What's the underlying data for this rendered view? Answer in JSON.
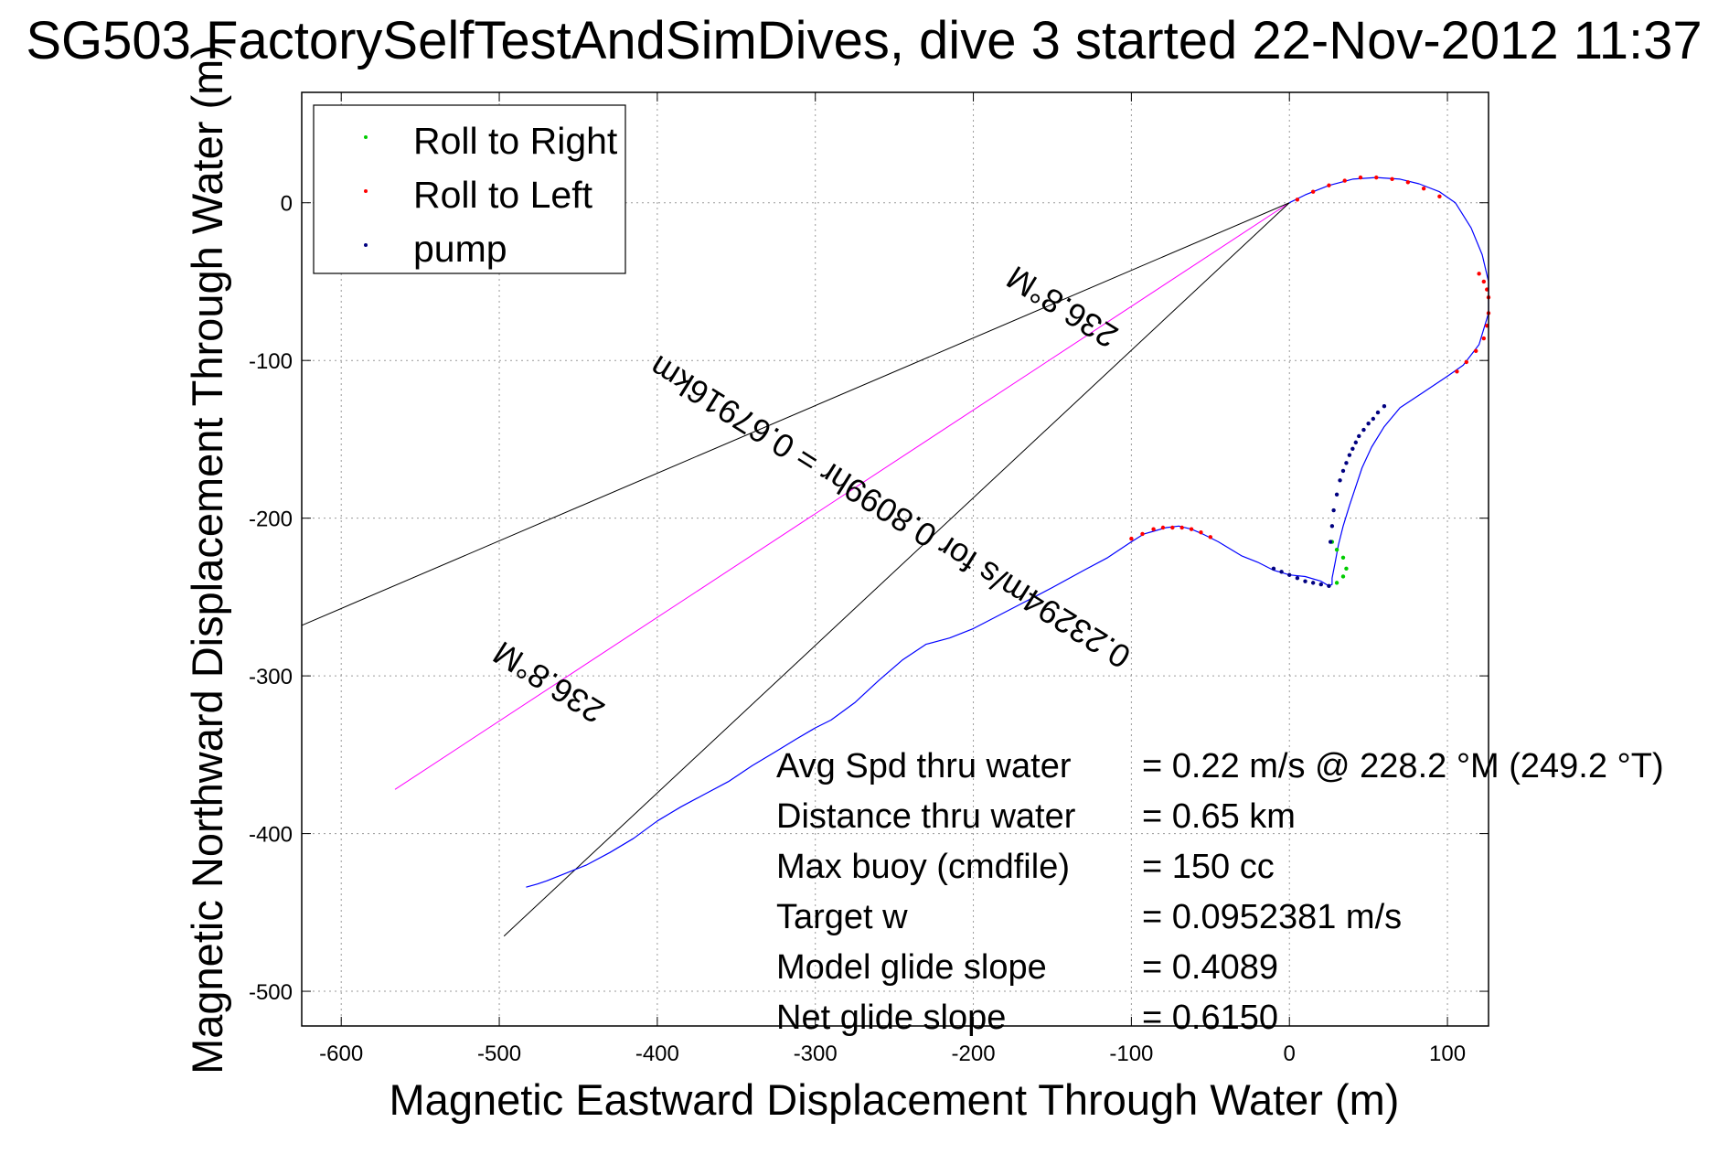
{
  "chart_data": {
    "type": "line",
    "title": "SG503 FactorySelfTestAndSimDives, dive 3 started 22-Nov-2012 11:37",
    "xlabel": "Magnetic Eastward Displacement Through Water (m)",
    "ylabel": "Magnetic Northward Displacement Through Water (m)",
    "xlim": [
      -625,
      126
    ],
    "ylim": [
      -522,
      70
    ],
    "xticks": [
      -600,
      -500,
      -400,
      -300,
      -200,
      -100,
      0,
      100
    ],
    "yticks": [
      0,
      -100,
      -200,
      -300,
      -400,
      -500
    ],
    "grid": true,
    "legend_position": "top-left",
    "legend": [
      {
        "label": "Roll to Right",
        "color": "#00cc00"
      },
      {
        "label": "Roll to Left",
        "color": "#ff0000"
      },
      {
        "label": "pump",
        "color": "#000080"
      }
    ],
    "series": [
      {
        "style": "track",
        "color": "#0000ff",
        "x": [
          0,
          10,
          25,
          40,
          55,
          70,
          82,
          95,
          105,
          115,
          122,
          126,
          126,
          120,
          110,
          100,
          85,
          70,
          60,
          52,
          46,
          42,
          38,
          34,
          31,
          29,
          27,
          27,
          25,
          20,
          10,
          0,
          -10,
          -20,
          -30,
          -45,
          -55,
          -62,
          -70,
          -78,
          -85,
          -92,
          -100,
          -115,
          -130,
          -150,
          -175,
          -200,
          -215,
          -230,
          -245,
          -260,
          -275,
          -290,
          -300,
          -312,
          -325,
          -340,
          -355,
          -370,
          -385,
          -400,
          -415,
          -430,
          -445,
          -460,
          -470,
          -476,
          -483
        ],
        "y": [
          0,
          5,
          11,
          15,
          16,
          15,
          12,
          7,
          0,
          -16,
          -33,
          -50,
          -70,
          -90,
          -103,
          -110,
          -120,
          -130,
          -142,
          -155,
          -168,
          -180,
          -192,
          -205,
          -217,
          -228,
          -238,
          -242,
          -243,
          -240,
          -237,
          -236,
          -233,
          -228,
          -224,
          -215,
          -210,
          -207,
          -205,
          -206,
          -208,
          -210,
          -215,
          -225,
          -233,
          -244,
          -257,
          -270,
          -276,
          -280,
          -290,
          -303,
          -317,
          -328,
          -333,
          -340,
          -348,
          -357,
          -367,
          -375,
          -383,
          -392,
          -403,
          -412,
          -420,
          -426,
          -430,
          -432,
          -434
        ]
      },
      {
        "name": "Roll to Right",
        "style": "markers",
        "color": "#00cc00",
        "x": [
          27,
          30,
          34,
          36,
          34,
          30
        ],
        "y": [
          -215,
          -220,
          -225,
          -232,
          -237,
          -241
        ]
      },
      {
        "name": "Roll to Left",
        "style": "markers",
        "color": "#ff0000",
        "x": [
          5,
          15,
          25,
          35,
          45,
          55,
          65,
          75,
          85,
          95,
          120,
          123,
          125,
          126,
          126,
          125,
          123,
          118,
          112,
          106,
          -100,
          -93,
          -86,
          -80,
          -74,
          -68,
          -62,
          -56,
          -50
        ],
        "y": [
          2,
          7,
          11,
          14,
          16,
          16,
          15,
          13,
          9,
          4,
          -45,
          -50,
          -55,
          -60,
          -70,
          -78,
          -86,
          -94,
          -101,
          -107,
          -213,
          -210,
          -207,
          -206,
          -206,
          -206,
          -207,
          -209,
          -212
        ]
      },
      {
        "name": "pump",
        "style": "markers",
        "color": "#000080",
        "x": [
          -10,
          -5,
          0,
          5,
          10,
          15,
          20,
          25,
          26,
          27,
          28,
          30,
          32,
          34,
          36,
          38,
          40,
          42,
          44,
          47,
          50,
          53,
          56,
          60
        ],
        "y": [
          -232,
          -234,
          -236,
          -238,
          -240,
          -241,
          -242,
          -243,
          -215,
          -205,
          -195,
          -185,
          -176,
          -170,
          -165,
          -160,
          -156,
          -152,
          -148,
          -144,
          -140,
          -137,
          -133,
          -129
        ]
      },
      {
        "name": "Avg Spd thru water",
        "style": "line",
        "color": "#ff00ff",
        "x": [
          0,
          -566
        ],
        "y": [
          0,
          -372
        ]
      },
      {
        "style": "line",
        "color": "#000000",
        "x": [
          0,
          -625
        ],
        "y": [
          0,
          -268
        ]
      },
      {
        "style": "line",
        "color": "#000000",
        "x": [
          0,
          -497
        ],
        "y": [
          0,
          -465
        ]
      }
    ],
    "annotations": [
      {
        "text": "236.8°M",
        "x": -465,
        "y": -298,
        "angle": 212
      },
      {
        "text": "236.8°M",
        "x": -140,
        "y": -60,
        "angle": 212
      },
      {
        "text": "0.23294m/s for 0.8099hr = 0.67916km",
        "x": -249,
        "y": -190,
        "angle": 212
      }
    ],
    "stats": [
      {
        "label": "Avg Spd thru water",
        "value": "=  0.22 m/s @ 228.2 °M (249.2 °T)"
      },
      {
        "label": "Distance thru water",
        "value": "=  0.65 km"
      },
      {
        "label": "Max buoy (cmdfile)",
        "value": "= 150 cc"
      },
      {
        "label": "Target w",
        "value": "= 0.0952381 m/s"
      },
      {
        "label": "Model glide slope",
        "value": "= 0.4089"
      },
      {
        "label": "Net glide slope",
        "value": "= 0.6150"
      }
    ]
  }
}
